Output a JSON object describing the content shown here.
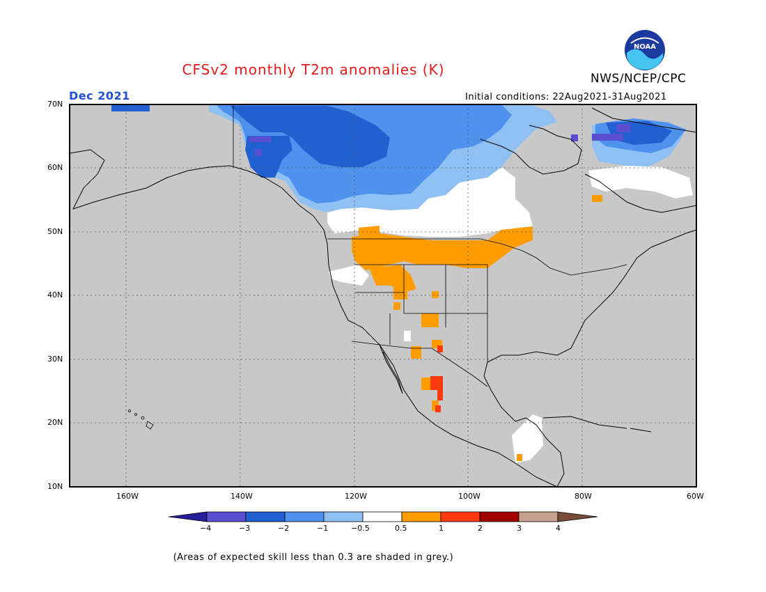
{
  "title": "CFSv2 monthly T2m anomalies (K)",
  "agency": "NWS/NCEP/CPC",
  "logo_text": "NOAA",
  "valid_month": "Dec 2021",
  "initial_conditions": "Initial conditions: 22Aug2021-31Aug2021",
  "lat_labels": [
    "70N",
    "60N",
    "50N",
    "40N",
    "30N",
    "20N",
    "10N"
  ],
  "lon_labels": [
    "160W",
    "140W",
    "120W",
    "100W",
    "80W",
    "60W"
  ],
  "colorbar": {
    "labels": [
      "−4",
      "−3",
      "−2",
      "−1",
      "−0.5",
      "0.5",
      "1",
      "2",
      "3",
      "4"
    ],
    "colors": [
      "#28209a",
      "#5a4fd0",
      "#2060d0",
      "#4f92ee",
      "#8ec0f4",
      "#ffffff",
      "#ff9d00",
      "#ff3a10",
      "#a00000",
      "#c8a090",
      "#7a4a3a"
    ]
  },
  "colors": {
    "title": "#e31a1c",
    "valid_month": "#1f4fd8",
    "skill_grey": "#c8c8c8"
  },
  "footnote": "(Areas of expected skill less than 0.3 are shaded in grey.)"
}
